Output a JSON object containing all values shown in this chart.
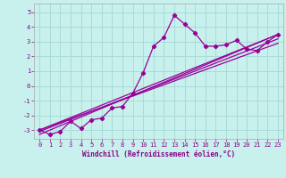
{
  "xlabel": "Windchill (Refroidissement éolien,°C)",
  "bg_color": "#c8f0ec",
  "grid_color": "#a8dcd8",
  "line_color": "#990099",
  "xlim": [
    -0.5,
    23.5
  ],
  "ylim": [
    -3.6,
    5.6
  ],
  "yticks": [
    -3,
    -2,
    -1,
    0,
    1,
    2,
    3,
    4,
    5
  ],
  "xtick_labels": [
    "0",
    "1",
    "2",
    "3",
    "4",
    "5",
    "6",
    "7",
    "8",
    "9",
    "10",
    "11",
    "12",
    "13",
    "14",
    "15",
    "16",
    "17",
    "18",
    "19",
    "20",
    "21",
    "22",
    "23"
  ],
  "series1_x": [
    0,
    1,
    2,
    3,
    4,
    5,
    6,
    7,
    8,
    9,
    10,
    11,
    12,
    13,
    14,
    15,
    16,
    17,
    18,
    19,
    20,
    21,
    22,
    23
  ],
  "series1_y": [
    -3.0,
    -3.3,
    -3.1,
    -2.4,
    -2.9,
    -2.3,
    -2.2,
    -1.5,
    -1.4,
    -0.5,
    0.9,
    2.7,
    3.3,
    4.8,
    4.2,
    3.6,
    2.7,
    2.7,
    2.8,
    3.1,
    2.5,
    2.4,
    3.0,
    3.5
  ],
  "series2_x": [
    0,
    23
  ],
  "series2_y": [
    -3.3,
    3.5
  ],
  "series3_x": [
    0,
    23
  ],
  "series3_y": [
    -3.0,
    2.9
  ],
  "series4_x": [
    0,
    23
  ],
  "series4_y": [
    -3.1,
    3.2
  ],
  "series5_x": [
    0,
    23
  ],
  "series5_y": [
    -3.0,
    3.5
  ]
}
